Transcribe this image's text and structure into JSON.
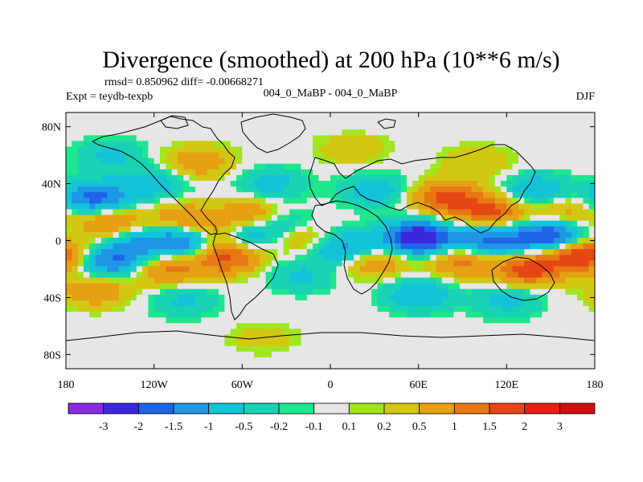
{
  "chart_data": {
    "type": "heatmap",
    "title": "Divergence (smoothed) at 200 hPa (10**6 m/s)",
    "stats": "rmsd= 0.850962 diff= -0.00668271",
    "left_label": "Expt = teydb-texpb",
    "center_label": "004_0_MaBP - 004_0_MaBP",
    "right_label": "DJF",
    "xlim": [
      -180,
      180
    ],
    "ylim": [
      -90,
      90
    ],
    "x_ticks": [
      {
        "value": -180,
        "label": "180"
      },
      {
        "value": -120,
        "label": "120W"
      },
      {
        "value": -60,
        "label": "60W"
      },
      {
        "value": 0,
        "label": "0"
      },
      {
        "value": 60,
        "label": "60E"
      },
      {
        "value": 120,
        "label": "120E"
      },
      {
        "value": 180,
        "label": "180"
      }
    ],
    "y_ticks": [
      {
        "value": 80,
        "label": "80N"
      },
      {
        "value": 40,
        "label": "40N"
      },
      {
        "value": 0,
        "label": "0"
      },
      {
        "value": -40,
        "label": "40S"
      },
      {
        "value": -80,
        "label": "80S"
      }
    ],
    "colorbar": {
      "levels": [
        "-3",
        "-2",
        "-1.5",
        "-1",
        "-0.5",
        "-0.2",
        "-0.1",
        "0.1",
        "0.2",
        "0.5",
        "1",
        "1.5",
        "2",
        "3"
      ],
      "colors": [
        "#8a2be2",
        "#3c28dc",
        "#1e64e6",
        "#1e96e6",
        "#14c3d7",
        "#19d2b4",
        "#1ee68c",
        "#e6e6e6",
        "#a0e61e",
        "#d2c814",
        "#e6a014",
        "#e67814",
        "#e64614",
        "#e61e14",
        "#cc0f0f"
      ]
    },
    "field": {
      "description": "smoothed divergence difference field, lon -180..180, lat -90..90",
      "blobs": [
        {
          "lon": -160,
          "lat": 30,
          "value": -1.8
        },
        {
          "lon": -120,
          "lat": 40,
          "value": -0.8
        },
        {
          "lon": -150,
          "lat": 12,
          "value": 1.2
        },
        {
          "lon": -100,
          "lat": 15,
          "value": 1.0
        },
        {
          "lon": -130,
          "lat": -2,
          "value": -1.2
        },
        {
          "lon": -95,
          "lat": 0,
          "value": -2.2
        },
        {
          "lon": -60,
          "lat": 3,
          "value": -1.3
        },
        {
          "lon": -150,
          "lat": -15,
          "value": -1.5
        },
        {
          "lon": -110,
          "lat": -20,
          "value": 1.2
        },
        {
          "lon": -70,
          "lat": -12,
          "value": 1.6
        },
        {
          "lon": -80,
          "lat": 2,
          "value": 1.8
        },
        {
          "lon": -160,
          "lat": -35,
          "value": 1.0
        },
        {
          "lon": -100,
          "lat": -42,
          "value": -0.6
        },
        {
          "lon": -90,
          "lat": 55,
          "value": 0.9
        },
        {
          "lon": -40,
          "lat": 40,
          "value": -0.7
        },
        {
          "lon": -55,
          "lat": 18,
          "value": 1.0
        },
        {
          "lon": -30,
          "lat": 10,
          "value": -0.8
        },
        {
          "lon": -20,
          "lat": -25,
          "value": -0.6
        },
        {
          "lon": -20,
          "lat": 3,
          "value": 0.9
        },
        {
          "lon": 30,
          "lat": 35,
          "value": -0.8
        },
        {
          "lon": 10,
          "lat": -5,
          "value": -1.3
        },
        {
          "lon": 30,
          "lat": -15,
          "value": 1.0
        },
        {
          "lon": 60,
          "lat": 2,
          "value": -2.8
        },
        {
          "lon": 110,
          "lat": 0,
          "value": -1.8
        },
        {
          "lon": 150,
          "lat": 3,
          "value": -2.2
        },
        {
          "lon": 80,
          "lat": 30,
          "value": 1.8
        },
        {
          "lon": 110,
          "lat": 20,
          "value": 1.6
        },
        {
          "lon": 140,
          "lat": 35,
          "value": -1.0
        },
        {
          "lon": 160,
          "lat": 20,
          "value": 0.8
        },
        {
          "lon": 90,
          "lat": -15,
          "value": 1.2
        },
        {
          "lon": 135,
          "lat": -20,
          "value": 1.8
        },
        {
          "lon": 60,
          "lat": -38,
          "value": -1.0
        },
        {
          "lon": 120,
          "lat": -42,
          "value": -0.7
        },
        {
          "lon": 170,
          "lat": -10,
          "value": 2.2
        },
        {
          "lon": 15,
          "lat": 65,
          "value": 0.5
        },
        {
          "lon": -150,
          "lat": 60,
          "value": -0.6
        },
        {
          "lon": 100,
          "lat": 55,
          "value": 0.5
        },
        {
          "lon": -45,
          "lat": -70,
          "value": 0.4
        }
      ]
    }
  }
}
